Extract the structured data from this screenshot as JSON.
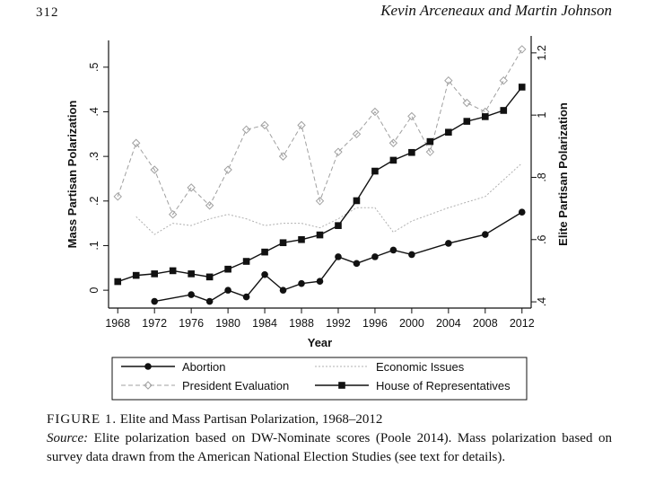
{
  "header": {
    "page_number": "312",
    "running_head": "Kevin Arceneaux and Martin Johnson"
  },
  "caption": {
    "figure_label": "FIGURE 1.",
    "figure_title": "Elite and Mass Partisan Polarization, 1968–2012",
    "source_label": "Source:",
    "source_text": "Elite polarization based on DW-Nominate scores (Poole 2014). Mass polarization based on survey data drawn from the American National Election Studies (see text for details)."
  },
  "chart_data": {
    "type": "line",
    "xlabel": "Year",
    "ylabel_left": "Mass Partisan Polarization",
    "ylabel_right": "Elite Partisan Polarization",
    "xlim": [
      1967,
      2013
    ],
    "ylim_left": [
      -0.04,
      0.56
    ],
    "ylim_right": [
      0.38,
      1.24
    ],
    "x_ticks": [
      1968,
      1972,
      1976,
      1980,
      1984,
      1988,
      1992,
      1996,
      2000,
      2004,
      2008,
      2012
    ],
    "x_tick_labels": [
      "1968",
      "1972",
      "1976",
      "1980",
      "1984",
      "1988",
      "1992",
      "1996",
      "2000",
      "2004",
      "2008",
      "2012"
    ],
    "y_left_ticks": [
      0,
      0.1,
      0.2,
      0.3,
      0.4,
      0.5
    ],
    "y_left_tick_labels": [
      "0",
      ".1",
      ".2",
      ".3",
      ".4",
      ".5"
    ],
    "y_right_ticks": [
      0.4,
      0.6,
      0.8,
      1.0,
      1.2
    ],
    "y_right_tick_labels": [
      ".4",
      ".6",
      ".8",
      "1",
      "1.2"
    ],
    "grid": false,
    "legend_position": "bottom",
    "series": [
      {
        "name": "Abortion",
        "axis": "left",
        "style": "solid-circle",
        "color": "#111111",
        "x": [
          1972,
          1976,
          1978,
          1980,
          1982,
          1984,
          1986,
          1988,
          1990,
          1992,
          1994,
          1996,
          1998,
          2000,
          2004,
          2008,
          2012
        ],
        "y": [
          -0.025,
          -0.01,
          -0.025,
          0.0,
          -0.015,
          0.035,
          0.0,
          0.015,
          0.02,
          0.075,
          0.06,
          0.075,
          0.09,
          0.08,
          0.105,
          0.125,
          0.175
        ]
      },
      {
        "name": "President Evaluation",
        "axis": "left",
        "style": "dashed-diamond",
        "color": "#a0a0a0",
        "x": [
          1968,
          1970,
          1972,
          1974,
          1976,
          1978,
          1980,
          1982,
          1984,
          1986,
          1988,
          1990,
          1992,
          1994,
          1996,
          1998,
          2000,
          2002,
          2004,
          2006,
          2008,
          2010,
          2012
        ],
        "y": [
          0.21,
          0.33,
          0.27,
          0.17,
          0.23,
          0.19,
          0.27,
          0.36,
          0.37,
          0.3,
          0.37,
          0.2,
          0.31,
          0.35,
          0.4,
          0.33,
          0.39,
          0.31,
          0.47,
          0.42,
          0.4,
          0.47,
          0.54
        ]
      },
      {
        "name": "Economic Issues",
        "axis": "left",
        "style": "dotted",
        "color": "#b0b0b0",
        "x": [
          1970,
          1972,
          1974,
          1976,
          1978,
          1980,
          1982,
          1984,
          1986,
          1988,
          1990,
          1992,
          1994,
          1996,
          1998,
          2000,
          2004,
          2008,
          2012
        ],
        "y": [
          0.165,
          0.125,
          0.15,
          0.145,
          0.16,
          0.17,
          0.16,
          0.145,
          0.15,
          0.15,
          0.14,
          0.16,
          0.185,
          0.185,
          0.13,
          0.155,
          0.185,
          0.21,
          0.285
        ]
      },
      {
        "name": "House of Representatives",
        "axis": "right",
        "style": "solid-square",
        "color": "#111111",
        "x": [
          1968,
          1970,
          1972,
          1974,
          1976,
          1978,
          1980,
          1982,
          1984,
          1986,
          1988,
          1990,
          1992,
          1994,
          1996,
          1998,
          2000,
          2002,
          2004,
          2006,
          2008,
          2010,
          2012
        ],
        "y": [
          0.465,
          0.485,
          0.49,
          0.5,
          0.49,
          0.48,
          0.505,
          0.53,
          0.56,
          0.59,
          0.6,
          0.615,
          0.645,
          0.725,
          0.82,
          0.855,
          0.88,
          0.915,
          0.945,
          0.98,
          0.995,
          1.015,
          1.09
        ]
      }
    ],
    "legend": [
      {
        "label": "Abortion"
      },
      {
        "label": "Economic Issues"
      },
      {
        "label": "President Evaluation"
      },
      {
        "label": "House of Representatives"
      }
    ]
  }
}
